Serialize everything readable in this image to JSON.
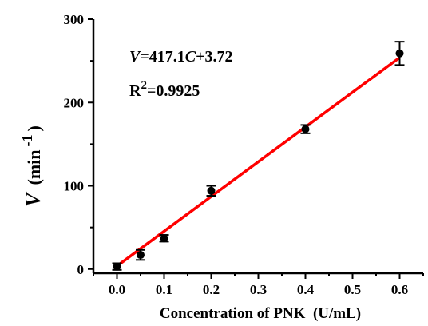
{
  "chart_data": {
    "type": "scatter",
    "xlabel": "Concentration of PNK  (U/mL)",
    "ylabel_var": "V",
    "ylabel_unit": "(min",
    "ylabel_exp": "-1",
    "ylabel_close": ")",
    "xlim": [
      -0.05,
      0.65
    ],
    "ylim": [
      -5,
      300
    ],
    "xticks": [
      "0.0",
      "0.1",
      "0.2",
      "0.3",
      "0.4",
      "0.5",
      "0.6"
    ],
    "yticks": [
      "0",
      "100",
      "200",
      "300"
    ],
    "series": [
      {
        "x": [
          0.0,
          0.05,
          0.1,
          0.2,
          0.4,
          0.6
        ],
        "y": [
          3,
          17,
          37,
          94,
          168,
          259
        ],
        "error": [
          4,
          6,
          4,
          6,
          5,
          14
        ]
      }
    ],
    "fit": {
      "slope": 417.1,
      "intercept": 3.72,
      "x_range": [
        0.0,
        0.6
      ],
      "color": "#ff0000"
    },
    "annotations": {
      "eq_var": "V",
      "eq_mid": "=417.1",
      "eq_var2": "C",
      "eq_end": "+3.72",
      "r2_prefix": "R",
      "r2_exp": "2",
      "r2_value": "=0.9925"
    }
  }
}
